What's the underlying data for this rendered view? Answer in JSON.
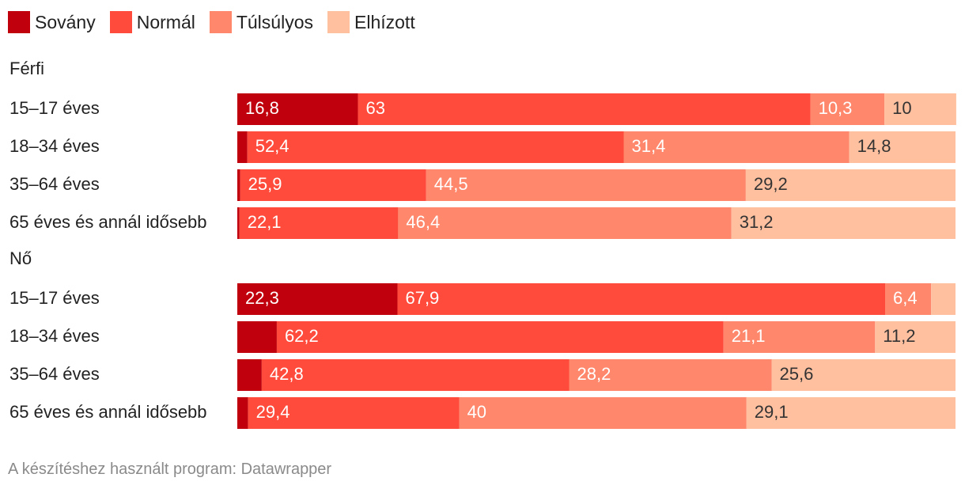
{
  "chart_data": {
    "type": "bar",
    "orientation": "horizontal",
    "stacked": true,
    "categories_legend": [
      "Sovány",
      "Normál",
      "Túlsúlyos",
      "Elhízott"
    ],
    "colors": [
      "#c0000c",
      "#ff4b3c",
      "#ff876b",
      "#ffc0a0"
    ],
    "label_colors": [
      "#ffffff",
      "#ffffff",
      "#ffffff",
      "#333333"
    ],
    "xlim": [
      0,
      100
    ],
    "groups": [
      {
        "label": "Férfi",
        "rows": [
          {
            "label": "15–17 éves",
            "values": [
              16.8,
              63,
              10.3,
              10
            ],
            "labels": [
              "16,8",
              "63",
              "10,3",
              "10"
            ]
          },
          {
            "label": "18–34 éves",
            "values": [
              1.4,
              52.4,
              31.4,
              14.8
            ],
            "labels": [
              "",
              "52,4",
              "31,4",
              "14,8"
            ]
          },
          {
            "label": "35–64 éves",
            "values": [
              0.4,
              25.9,
              44.5,
              29.2
            ],
            "labels": [
              "",
              "25,9",
              "44,5",
              "29,2"
            ]
          },
          {
            "label": "65 éves és annál idősebb",
            "values": [
              0.3,
              22.1,
              46.4,
              31.2
            ],
            "labels": [
              "",
              "22,1",
              "46,4",
              "31,2"
            ]
          }
        ]
      },
      {
        "label": "Nő",
        "rows": [
          {
            "label": "15–17 éves",
            "values": [
              22.3,
              67.9,
              6.4,
              3.4
            ],
            "labels": [
              "22,3",
              "67,9",
              "6,4",
              ""
            ]
          },
          {
            "label": "18–34 éves",
            "values": [
              5.5,
              62.2,
              21.1,
              11.2
            ],
            "labels": [
              "",
              "62,2",
              "21,1",
              "11,2"
            ]
          },
          {
            "label": "35–64 éves",
            "values": [
              3.4,
              42.8,
              28.2,
              25.6
            ],
            "labels": [
              "",
              "42,8",
              "28,2",
              "25,6"
            ]
          },
          {
            "label": "65 éves és annál idősebb",
            "values": [
              1.5,
              29.4,
              40,
              29.1
            ],
            "labels": [
              "",
              "29,4",
              "40",
              "29,1"
            ]
          }
        ]
      }
    ]
  },
  "footer": {
    "text": "A készítéshez használt program: Datawrapper"
  }
}
